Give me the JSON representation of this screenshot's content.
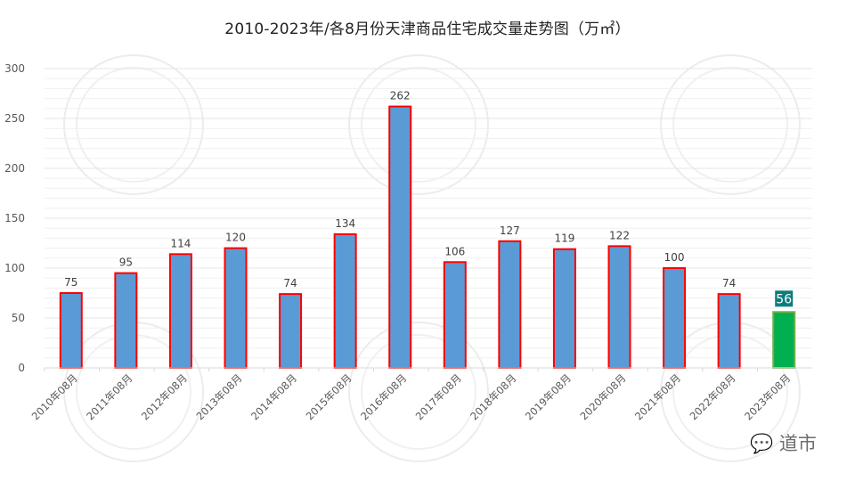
{
  "chart_data": {
    "type": "bar",
    "title": "2010-2023年/各8月份天津商品住宅成交量走势图（万㎡）",
    "xlabel": "",
    "ylabel": "",
    "ylim": [
      0,
      300
    ],
    "yticks": [
      0,
      50,
      100,
      150,
      200,
      250,
      300
    ],
    "grid": {
      "major_step": 50,
      "minor_step": 10
    },
    "legend": null,
    "categories": [
      "2010年08月",
      "2011年08月",
      "2012年08月",
      "2013年08月",
      "2014年08月",
      "2015年08月",
      "2016年08月",
      "2017年08月",
      "2018年08月",
      "2019年08月",
      "2020年08月",
      "2021年08月",
      "2022年08月",
      "2023年08月"
    ],
    "values": [
      75,
      95,
      114,
      120,
      74,
      134,
      262,
      106,
      127,
      119,
      122,
      100,
      74,
      56
    ],
    "highlight_index": 13,
    "colors": {
      "bar_fill": "#5b9bd5",
      "bar_border": "#ff0000",
      "highlight_fill": "#00b050",
      "highlight_border": "#70ad47",
      "highlight_label_bg": "#0e7c7b",
      "highlight_label_text": "#ffffff",
      "grid": "#e6e6e6",
      "axis_text": "#595959"
    }
  },
  "watermark": {
    "text": "道市",
    "icon": "wechat-icon"
  }
}
